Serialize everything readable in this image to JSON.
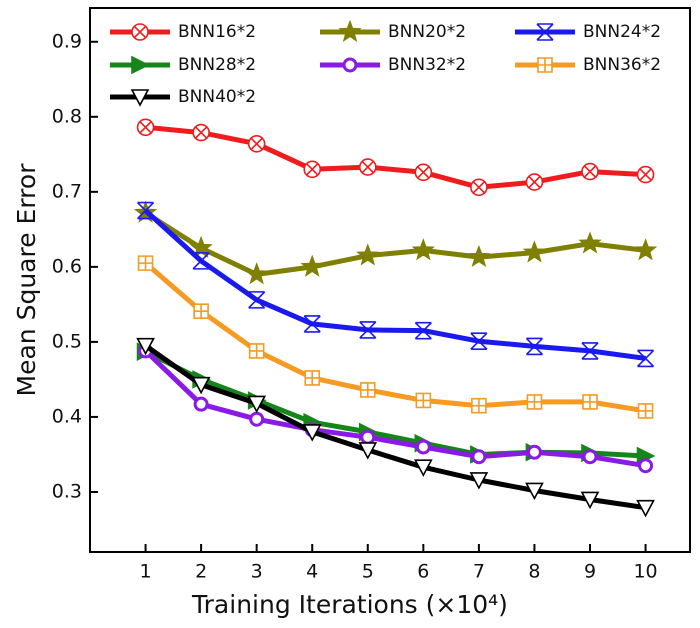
{
  "chart_data": {
    "type": "line",
    "x_label": "Training Iterations (×10⁴)",
    "y_label": "Mean Square Error",
    "x": [
      1,
      2,
      3,
      4,
      5,
      6,
      7,
      8,
      9,
      10
    ],
    "xlim": [
      0,
      10.8
    ],
    "xticks": [
      1,
      2,
      3,
      4,
      5,
      6,
      7,
      8,
      9,
      10
    ],
    "ylim": [
      0.22,
      0.945
    ],
    "yticks": [
      0.3,
      0.4,
      0.5,
      0.6,
      0.7,
      0.8,
      0.9
    ],
    "series": [
      {
        "name": "BNN16*2",
        "color": "#ee1c1c",
        "marker": "xcircle",
        "values": [
          0.786,
          0.779,
          0.764,
          0.73,
          0.733,
          0.726,
          0.706,
          0.713,
          0.727,
          0.723
        ]
      },
      {
        "name": "BNN20*2",
        "color": "#808000",
        "marker": "star",
        "values": [
          0.672,
          0.625,
          0.59,
          0.6,
          0.615,
          0.622,
          0.613,
          0.619,
          0.631,
          0.622
        ]
      },
      {
        "name": "BNN24*2",
        "color": "#1a1aee",
        "marker": "xbox",
        "values": [
          0.675,
          0.608,
          0.556,
          0.524,
          0.516,
          0.515,
          0.501,
          0.494,
          0.488,
          0.478
        ]
      },
      {
        "name": "BNN28*2",
        "color": "#16851a",
        "marker": "triright",
        "values": [
          0.487,
          0.45,
          0.422,
          0.393,
          0.38,
          0.365,
          0.35,
          0.353,
          0.352,
          0.348
        ]
      },
      {
        "name": "BNN32*2",
        "color": "#8a1ae6",
        "marker": "circle",
        "values": [
          0.488,
          0.417,
          0.397,
          0.383,
          0.373,
          0.36,
          0.347,
          0.353,
          0.347,
          0.335
        ]
      },
      {
        "name": "BNN36*2",
        "color": "#f59a23",
        "marker": "squareplus",
        "values": [
          0.605,
          0.541,
          0.488,
          0.452,
          0.436,
          0.422,
          0.415,
          0.42,
          0.42,
          0.408
        ]
      },
      {
        "name": "BNN40*2",
        "color": "#000000",
        "marker": "tridown",
        "values": [
          0.495,
          0.443,
          0.418,
          0.38,
          0.356,
          0.333,
          0.316,
          0.302,
          0.29,
          0.279
        ]
      }
    ]
  }
}
